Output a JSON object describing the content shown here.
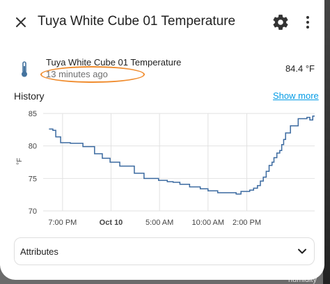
{
  "dialog": {
    "title": "Tuya White Cube 01 Temperature",
    "close_icon": "close-icon",
    "settings_icon": "gear-icon",
    "more_icon": "more-vertical-icon"
  },
  "entity": {
    "icon": "thermometer-icon",
    "name": "Tuya White Cube 01 Temperature",
    "last_changed": "13 minutes ago",
    "value": "84.4 °F"
  },
  "history": {
    "title": "History",
    "show_more": "Show more"
  },
  "chart_data": {
    "type": "line",
    "ylabel": "°F",
    "ylim": [
      70,
      85
    ],
    "yticks": [
      70,
      75,
      80,
      85
    ],
    "xticks": [
      "7:00 PM",
      "Oct 10",
      "5:00 AM",
      "10:00 AM",
      "2:00 PM"
    ],
    "grid": true,
    "series": [
      {
        "color": "#3b6aa0",
        "x": [
          17.6,
          18.0,
          18.3,
          18.8,
          19.8,
          21.1,
          22.3,
          23.1,
          23.9,
          24.9,
          26.4,
          27.4,
          28.9,
          29.8,
          30.4,
          31.1,
          32.1,
          33.2,
          34.0,
          35.0,
          36.9,
          37.4,
          38.3,
          38.7,
          39.1,
          39.4,
          39.7,
          40.0,
          40.3,
          40.6,
          40.8,
          41.1,
          41.4,
          41.6,
          41.8,
          42.0,
          42.5,
          43.3,
          44.2,
          44.5,
          44.8
        ],
        "y": [
          82.6,
          82.4,
          81.4,
          80.5,
          80.4,
          79.9,
          78.8,
          78.1,
          77.5,
          76.9,
          75.8,
          75.0,
          74.7,
          74.5,
          74.4,
          74.1,
          73.7,
          73.4,
          73.1,
          72.8,
          72.6,
          73.0,
          73.2,
          73.5,
          73.9,
          74.6,
          75.2,
          76.1,
          77.0,
          77.5,
          78.2,
          78.9,
          79.3,
          80.2,
          81.0,
          82.0,
          83.1,
          84.2,
          84.4,
          84.0,
          84.6
        ]
      }
    ]
  },
  "attributes": {
    "label": "Attributes",
    "chevron_icon": "chevron-down-icon"
  },
  "background": {
    "partial_text": "humidity"
  }
}
